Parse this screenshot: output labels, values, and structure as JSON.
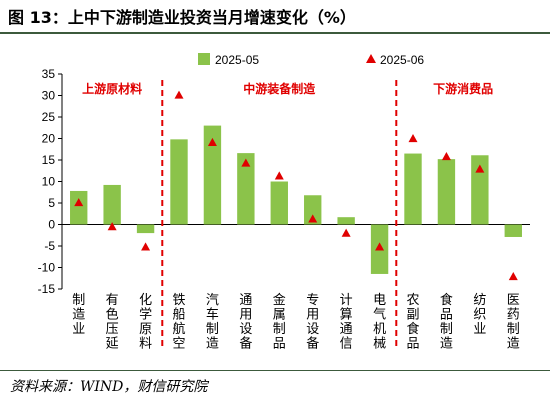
{
  "title": "图 13：上中下游制造业投资当月增速变化（%）",
  "source": "资料来源：WIND，财信研究院",
  "chart_data": {
    "type": "bar",
    "categories": [
      "制造业",
      "有色压延",
      "化学原料",
      "铁船航空",
      "汽车制造",
      "通用设备",
      "金属制品",
      "专用设备",
      "计算通信",
      "电气机械",
      "农副食品",
      "食品制造",
      "纺织业",
      "医药制造"
    ],
    "series": [
      {
        "name": "2025-05",
        "type": "bar",
        "values": [
          7.8,
          9.2,
          -2.0,
          19.8,
          23.0,
          16.6,
          10.0,
          6.8,
          1.7,
          -11.5,
          16.5,
          15.2,
          16.1,
          -2.9
        ]
      },
      {
        "name": "2025-06",
        "type": "marker",
        "values": [
          5.1,
          -0.5,
          -5.2,
          30.1,
          19.1,
          14.3,
          11.3,
          1.3,
          -2.0,
          -5.2,
          20.0,
          15.8,
          12.9,
          -12.1
        ]
      }
    ],
    "ylim": [
      -15,
      35
    ],
    "yticks": [
      -15,
      -10,
      -5,
      0,
      5,
      10,
      15,
      20,
      25,
      30,
      35
    ],
    "legend_position": "top",
    "groups": [
      {
        "label": "上游原材料",
        "start": 0,
        "end": 2
      },
      {
        "label": "中游装备制造",
        "start": 3,
        "end": 9
      },
      {
        "label": "下游消费品",
        "start": 10,
        "end": 13
      }
    ],
    "colors": {
      "bar": "#8bc34a",
      "marker": "#e00000",
      "divider": "#e00000",
      "group_label": "#e00000",
      "axis": "#000000"
    }
  }
}
